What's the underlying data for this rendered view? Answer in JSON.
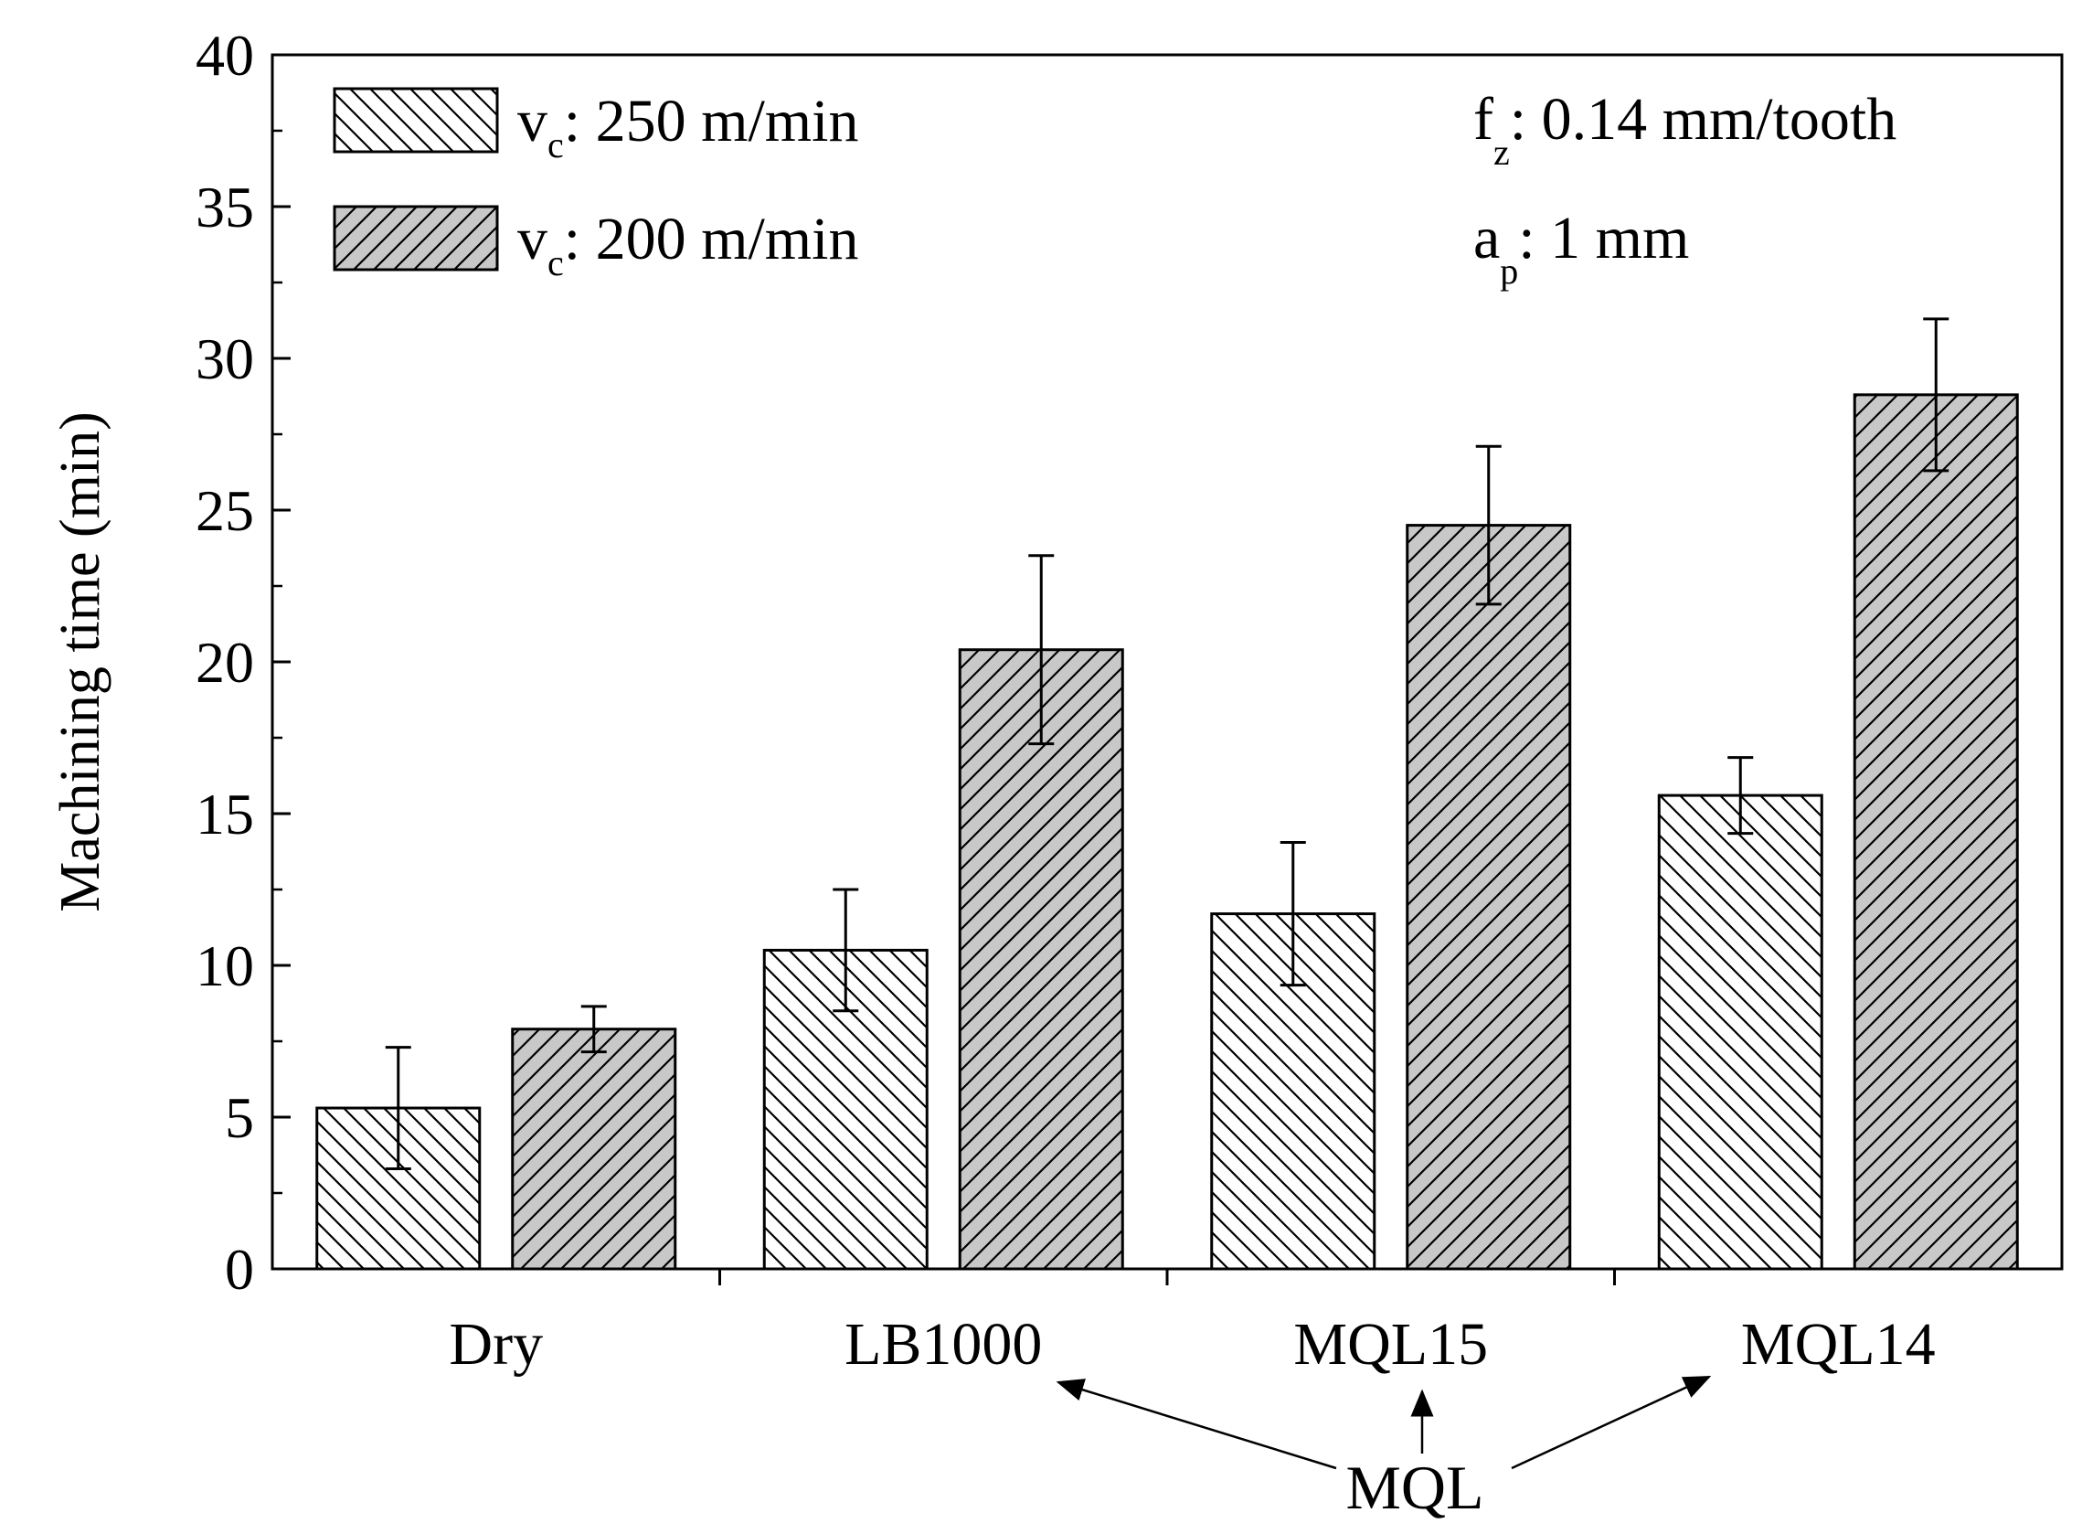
{
  "chart_data": {
    "type": "bar",
    "title": "",
    "xlabel": "",
    "ylabel": "Machining time (min)",
    "ylim": [
      0,
      40
    ],
    "yticks": [
      "0",
      "5",
      "10",
      "15",
      "20",
      "25",
      "30",
      "35",
      "40"
    ],
    "categories": [
      "Dry",
      "LB1000",
      "MQL15",
      "MQL14"
    ],
    "series": [
      {
        "name": "v_c: 250 m/min",
        "legend_main": "v",
        "legend_sub": "c",
        "legend_rest": ": 250 m/min",
        "pattern": "backslash-hatch",
        "fill": "#ffffff",
        "values": [
          5.3,
          10.5,
          11.7,
          15.6
        ],
        "errors": [
          2.0,
          2.0,
          2.35,
          1.25
        ]
      },
      {
        "name": "v_c: 200 m/min",
        "legend_main": "v",
        "legend_sub": "c",
        "legend_rest": ": 200 m/min",
        "pattern": "slash-hatch",
        "fill": "#c8c8c8",
        "values": [
          7.9,
          20.4,
          24.5,
          28.8
        ],
        "errors": [
          0.75,
          3.1,
          2.6,
          2.5
        ]
      }
    ],
    "annotations": {
      "fz_main": "f",
      "fz_sub": "z",
      "fz_rest": ": 0.14 mm/tooth",
      "ap_main": "a",
      "ap_sub": "p",
      "ap_rest": ": 1 mm",
      "mql_label": "MQL",
      "mql_points_to": [
        "LB1000",
        "MQL15",
        "MQL14"
      ]
    },
    "legend_position": "top-left",
    "grid": false
  },
  "colors": {
    "stroke": "#000000",
    "gray_fill": "#c8c8c8",
    "white_fill": "#ffffff"
  }
}
